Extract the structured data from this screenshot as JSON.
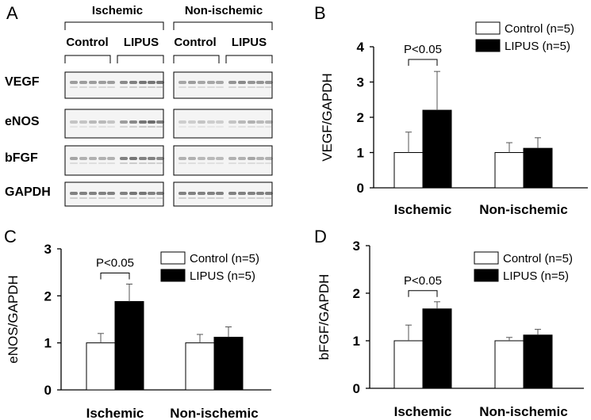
{
  "panels": {
    "A": "A",
    "B": "B",
    "C": "C",
    "D": "D"
  },
  "blot": {
    "groups": [
      "Ischemic",
      "Non-ischemic"
    ],
    "conditions": [
      "Control",
      "LIPUS",
      "Control",
      "LIPUS"
    ],
    "proteins": [
      "VEGF",
      "eNOS",
      "bFGF",
      "GAPDH"
    ]
  },
  "chart_data": [
    {
      "panel": "B",
      "type": "bar",
      "categories": [
        "Ischemic",
        "Non-ischemic"
      ],
      "ylabel": "VEGF/GAPDH",
      "ylim": [
        0,
        4
      ],
      "yticks": [
        0,
        1,
        2,
        3,
        4
      ],
      "legend_position": "top-right",
      "series": [
        {
          "name": "Control (n=5)",
          "color": "#ffffff",
          "values": [
            1.0,
            1.0
          ],
          "errors": [
            0.58,
            0.28
          ]
        },
        {
          "name": "LIPUS  (n=5)",
          "color": "#000000",
          "values": [
            2.2,
            1.12
          ],
          "errors": [
            1.1,
            0.3
          ]
        }
      ],
      "annotations": [
        {
          "text": "P<0.05",
          "category": "Ischemic"
        }
      ]
    },
    {
      "panel": "C",
      "type": "bar",
      "categories": [
        "Ischemic",
        "Non-ischemic"
      ],
      "ylabel": "eNOS/GAPDH",
      "ylim": [
        0,
        3
      ],
      "yticks": [
        0,
        1,
        2,
        3
      ],
      "legend_position": "top-right",
      "series": [
        {
          "name": "Control (n=5)",
          "color": "#ffffff",
          "values": [
            1.0,
            1.0
          ],
          "errors": [
            0.2,
            0.18
          ]
        },
        {
          "name": "LIPUS  (n=5)",
          "color": "#000000",
          "values": [
            1.88,
            1.12
          ],
          "errors": [
            0.37,
            0.22
          ]
        }
      ],
      "annotations": [
        {
          "text": "P<0.05",
          "category": "Ischemic"
        }
      ]
    },
    {
      "panel": "D",
      "type": "bar",
      "categories": [
        "Ischemic",
        "Non-ischemic"
      ],
      "ylabel": "bFGF/GAPDH",
      "ylim": [
        0,
        3
      ],
      "yticks": [
        0,
        1,
        2,
        3
      ],
      "legend_position": "top-right",
      "series": [
        {
          "name": "Control (n=5)",
          "color": "#ffffff",
          "values": [
            1.0,
            1.0
          ],
          "errors": [
            0.33,
            0.07
          ]
        },
        {
          "name": "LIPUS  (n=5)",
          "color": "#000000",
          "values": [
            1.67,
            1.12
          ],
          "errors": [
            0.15,
            0.12
          ]
        }
      ],
      "annotations": [
        {
          "text": "P<0.05",
          "category": "Ischemic"
        }
      ]
    }
  ]
}
